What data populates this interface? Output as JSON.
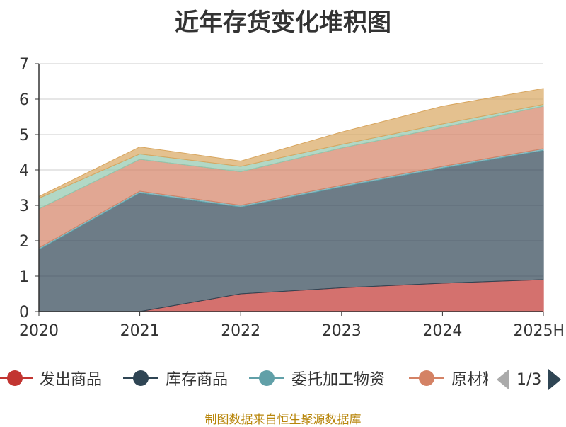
{
  "chart_data": {
    "type": "area",
    "title": "近年存货变化堆积图",
    "categories": [
      "2020",
      "2021",
      "2022",
      "2023",
      "2024",
      "2025H"
    ],
    "ylim": [
      0,
      7
    ],
    "yticks": [
      "0",
      "1",
      "2",
      "3",
      "4",
      "5",
      "6",
      "7"
    ],
    "stacked": true,
    "grid": true,
    "series": [
      {
        "name": "发出商品",
        "color": "#c23531",
        "values": [
          0,
          0,
          0.5,
          0.67,
          0.8,
          0.9
        ]
      },
      {
        "name": "库存商品",
        "color": "#2f4554",
        "values": [
          1.75,
          3.35,
          2.45,
          2.85,
          3.25,
          3.65
        ]
      },
      {
        "name": "委托加工物资",
        "color": "#61a0a8",
        "values": [
          0.05,
          0.05,
          0.05,
          0.05,
          0.05,
          0.05
        ]
      },
      {
        "name": "原材料",
        "color": "#d48265",
        "values": [
          1.1,
          0.9,
          0.95,
          1.05,
          1.1,
          1.2
        ]
      },
      {
        "name": "",
        "color": "#91c7ae",
        "values": [
          0.3,
          0.15,
          0.15,
          0.1,
          0.1,
          0.05
        ]
      },
      {
        "name": "",
        "color": "#d8a65f",
        "values": [
          0.05,
          0.2,
          0.15,
          0.35,
          0.5,
          0.45
        ]
      }
    ],
    "legend_position": "bottom"
  },
  "legend": {
    "items": [
      {
        "label": "发出商品",
        "color": "#c23531"
      },
      {
        "label": "库存商品",
        "color": "#2f4554"
      },
      {
        "label": "委托加工物资",
        "color": "#61a0a8"
      },
      {
        "label": "原材料",
        "color": "#d48265"
      }
    ],
    "page_text": "1/3"
  },
  "source_note": "制图数据来自恒生聚源数据库"
}
